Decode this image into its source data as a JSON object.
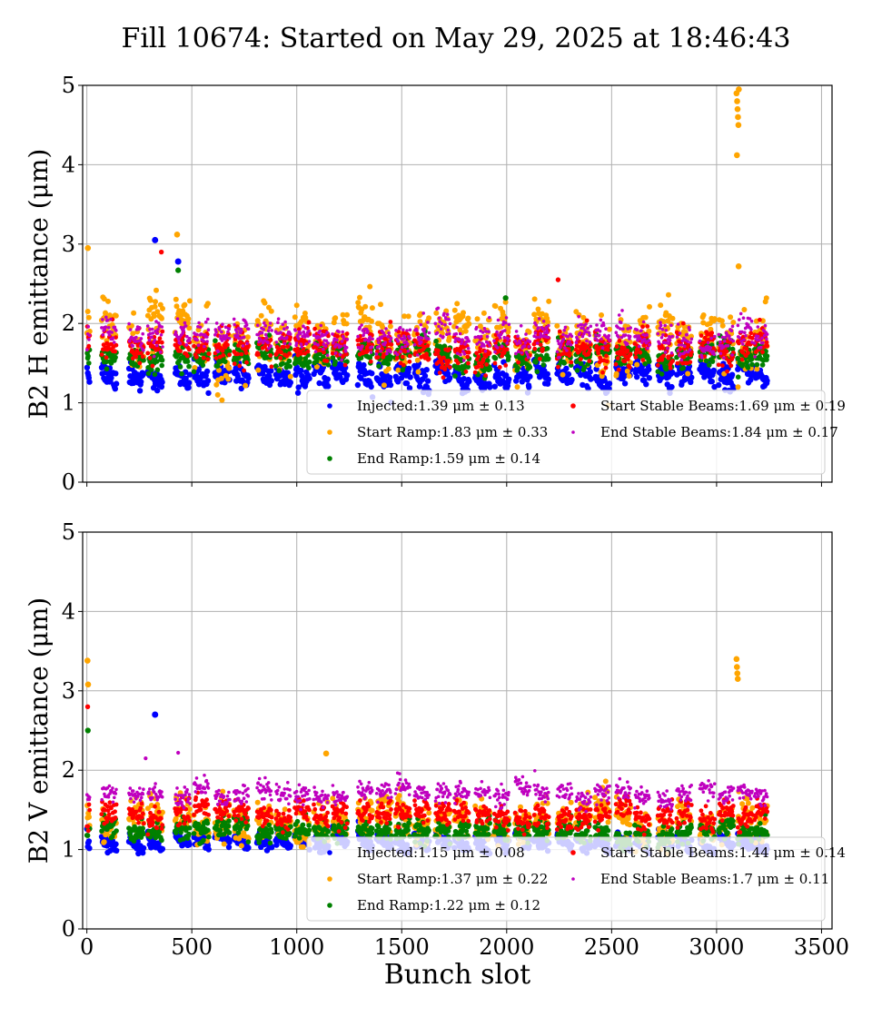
{
  "figure": {
    "title": "Fill 10674: Started on May 29, 2025 at 18:46:43"
  },
  "series_colors": {
    "injected": "#0000ff",
    "start_ramp": "#ffa500",
    "end_ramp": "#008000",
    "start_stable": "#ff0000",
    "end_stable": "#bf00bf"
  },
  "chart_data": [
    {
      "type": "scatter",
      "ylabel": "B2 H emittance (μm)",
      "xlim": [
        -20,
        3550
      ],
      "ylim": [
        0,
        5
      ],
      "xticks": [
        0,
        500,
        1000,
        1500,
        2000,
        2500,
        3000,
        3500
      ],
      "yticks": [
        0,
        1,
        2,
        3,
        4,
        5
      ],
      "xtick_labels_shown": false,
      "grid": true,
      "legend_position": "lower-right",
      "series": [
        {
          "name": "Injected",
          "key": "injected",
          "legend": "Injected:1.39 μm ± 0.13",
          "mean": 1.39,
          "std": 0.13
        },
        {
          "name": "Start Ramp",
          "key": "start_ramp",
          "legend": "Start Ramp:1.83 μm ± 0.33",
          "mean": 1.83,
          "std": 0.33
        },
        {
          "name": "End Ramp",
          "key": "end_ramp",
          "legend": "End Ramp:1.59 μm ± 0.14",
          "mean": 1.59,
          "std": 0.14
        },
        {
          "name": "Start Stable Beams",
          "key": "start_stable",
          "legend": "Start Stable Beams:1.69 μm ± 0.19",
          "mean": 1.69,
          "std": 0.19
        },
        {
          "name": "End Stable Beams",
          "key": "end_stable",
          "legend": "End Stable Beams:1.84 μm ± 0.17",
          "mean": 1.84,
          "std": 0.17
        }
      ],
      "outliers": [
        {
          "series": "injected",
          "x": 325,
          "y": 3.05
        },
        {
          "series": "injected",
          "x": 435,
          "y": 2.78
        },
        {
          "series": "start_ramp",
          "x": 5,
          "y": 2.95
        },
        {
          "series": "start_ramp",
          "x": 430,
          "y": 3.12
        },
        {
          "series": "start_ramp",
          "x": 3095,
          "y": 4.9
        },
        {
          "series": "start_ramp",
          "x": 3098,
          "y": 4.8
        },
        {
          "series": "start_ramp",
          "x": 3100,
          "y": 4.7
        },
        {
          "series": "start_ramp",
          "x": 3102,
          "y": 4.6
        },
        {
          "series": "start_ramp",
          "x": 3104,
          "y": 4.5
        },
        {
          "series": "start_ramp",
          "x": 3097,
          "y": 4.12
        },
        {
          "series": "start_ramp",
          "x": 3105,
          "y": 2.72
        },
        {
          "series": "start_ramp",
          "x": 3106,
          "y": 4.95
        },
        {
          "series": "start_stable",
          "x": 355,
          "y": 2.9
        },
        {
          "series": "start_stable",
          "x": 2245,
          "y": 2.55
        },
        {
          "series": "end_ramp",
          "x": 435,
          "y": 2.67
        },
        {
          "series": "end_ramp",
          "x": 1995,
          "y": 2.32
        }
      ]
    },
    {
      "type": "scatter",
      "ylabel": "B2 V emittance (μm)",
      "xlabel": "Bunch slot",
      "xlim": [
        -20,
        3550
      ],
      "ylim": [
        0,
        5
      ],
      "xticks": [
        0,
        500,
        1000,
        1500,
        2000,
        2500,
        3000,
        3500
      ],
      "yticks": [
        0,
        1,
        2,
        3,
        4,
        5
      ],
      "xtick_labels_shown": true,
      "grid": true,
      "legend_position": "lower-right",
      "series": [
        {
          "name": "Injected",
          "key": "injected",
          "legend": "Injected:1.15 μm ± 0.08",
          "mean": 1.15,
          "std": 0.08
        },
        {
          "name": "Start Ramp",
          "key": "start_ramp",
          "legend": "Start Ramp:1.37 μm ± 0.22",
          "mean": 1.37,
          "std": 0.22
        },
        {
          "name": "End Ramp",
          "key": "end_ramp",
          "legend": "End Ramp:1.22 μm ± 0.12",
          "mean": 1.22,
          "std": 0.12
        },
        {
          "name": "Start Stable Beams",
          "key": "start_stable",
          "legend": "Start Stable Beams:1.44 μm ± 0.14",
          "mean": 1.44,
          "std": 0.14
        },
        {
          "name": "End Stable Beams",
          "key": "end_stable",
          "legend": "End Stable Beams:1.7 μm ± 0.11",
          "mean": 1.7,
          "std": 0.11
        }
      ],
      "outliers": [
        {
          "series": "injected",
          "x": 325,
          "y": 2.7
        },
        {
          "series": "start_ramp",
          "x": 3,
          "y": 3.38
        },
        {
          "series": "start_ramp",
          "x": 6,
          "y": 3.08
        },
        {
          "series": "start_ramp",
          "x": 3095,
          "y": 3.4
        },
        {
          "series": "start_ramp",
          "x": 3097,
          "y": 3.3
        },
        {
          "series": "start_ramp",
          "x": 3099,
          "y": 3.22
        },
        {
          "series": "start_ramp",
          "x": 3101,
          "y": 3.15
        },
        {
          "series": "start_ramp",
          "x": 1140,
          "y": 2.21
        },
        {
          "series": "start_stable",
          "x": 4,
          "y": 2.8
        },
        {
          "series": "end_ramp",
          "x": 5,
          "y": 2.5
        },
        {
          "series": "end_stable",
          "x": 280,
          "y": 2.15
        },
        {
          "series": "end_stable",
          "x": 435,
          "y": 2.22
        }
      ]
    }
  ]
}
